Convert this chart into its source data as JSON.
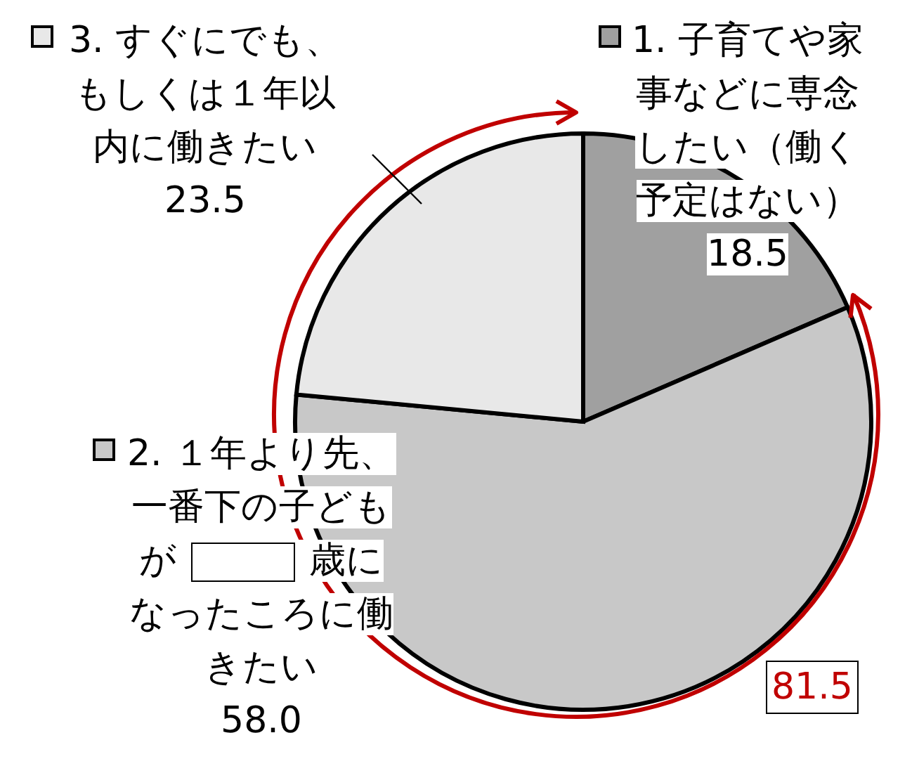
{
  "chart_data": {
    "type": "pie",
    "categories": [
      "1. 子育てや家事などに専念したい（働く予定はない）",
      "2. １年より先、一番下の子どもが　　　歳になったころに働きたい",
      "3. すぐにでも、もしくは１年以内に働きたい"
    ],
    "values": [
      18.5,
      58.0,
      23.5
    ],
    "value_labels": [
      "18.5",
      "58.0",
      "23.5"
    ],
    "colors": [
      "#a0a0a0",
      "#c8c8c8",
      "#e8e8e8"
    ],
    "legend": "top",
    "annotations": [
      "81.5"
    ]
  }
}
